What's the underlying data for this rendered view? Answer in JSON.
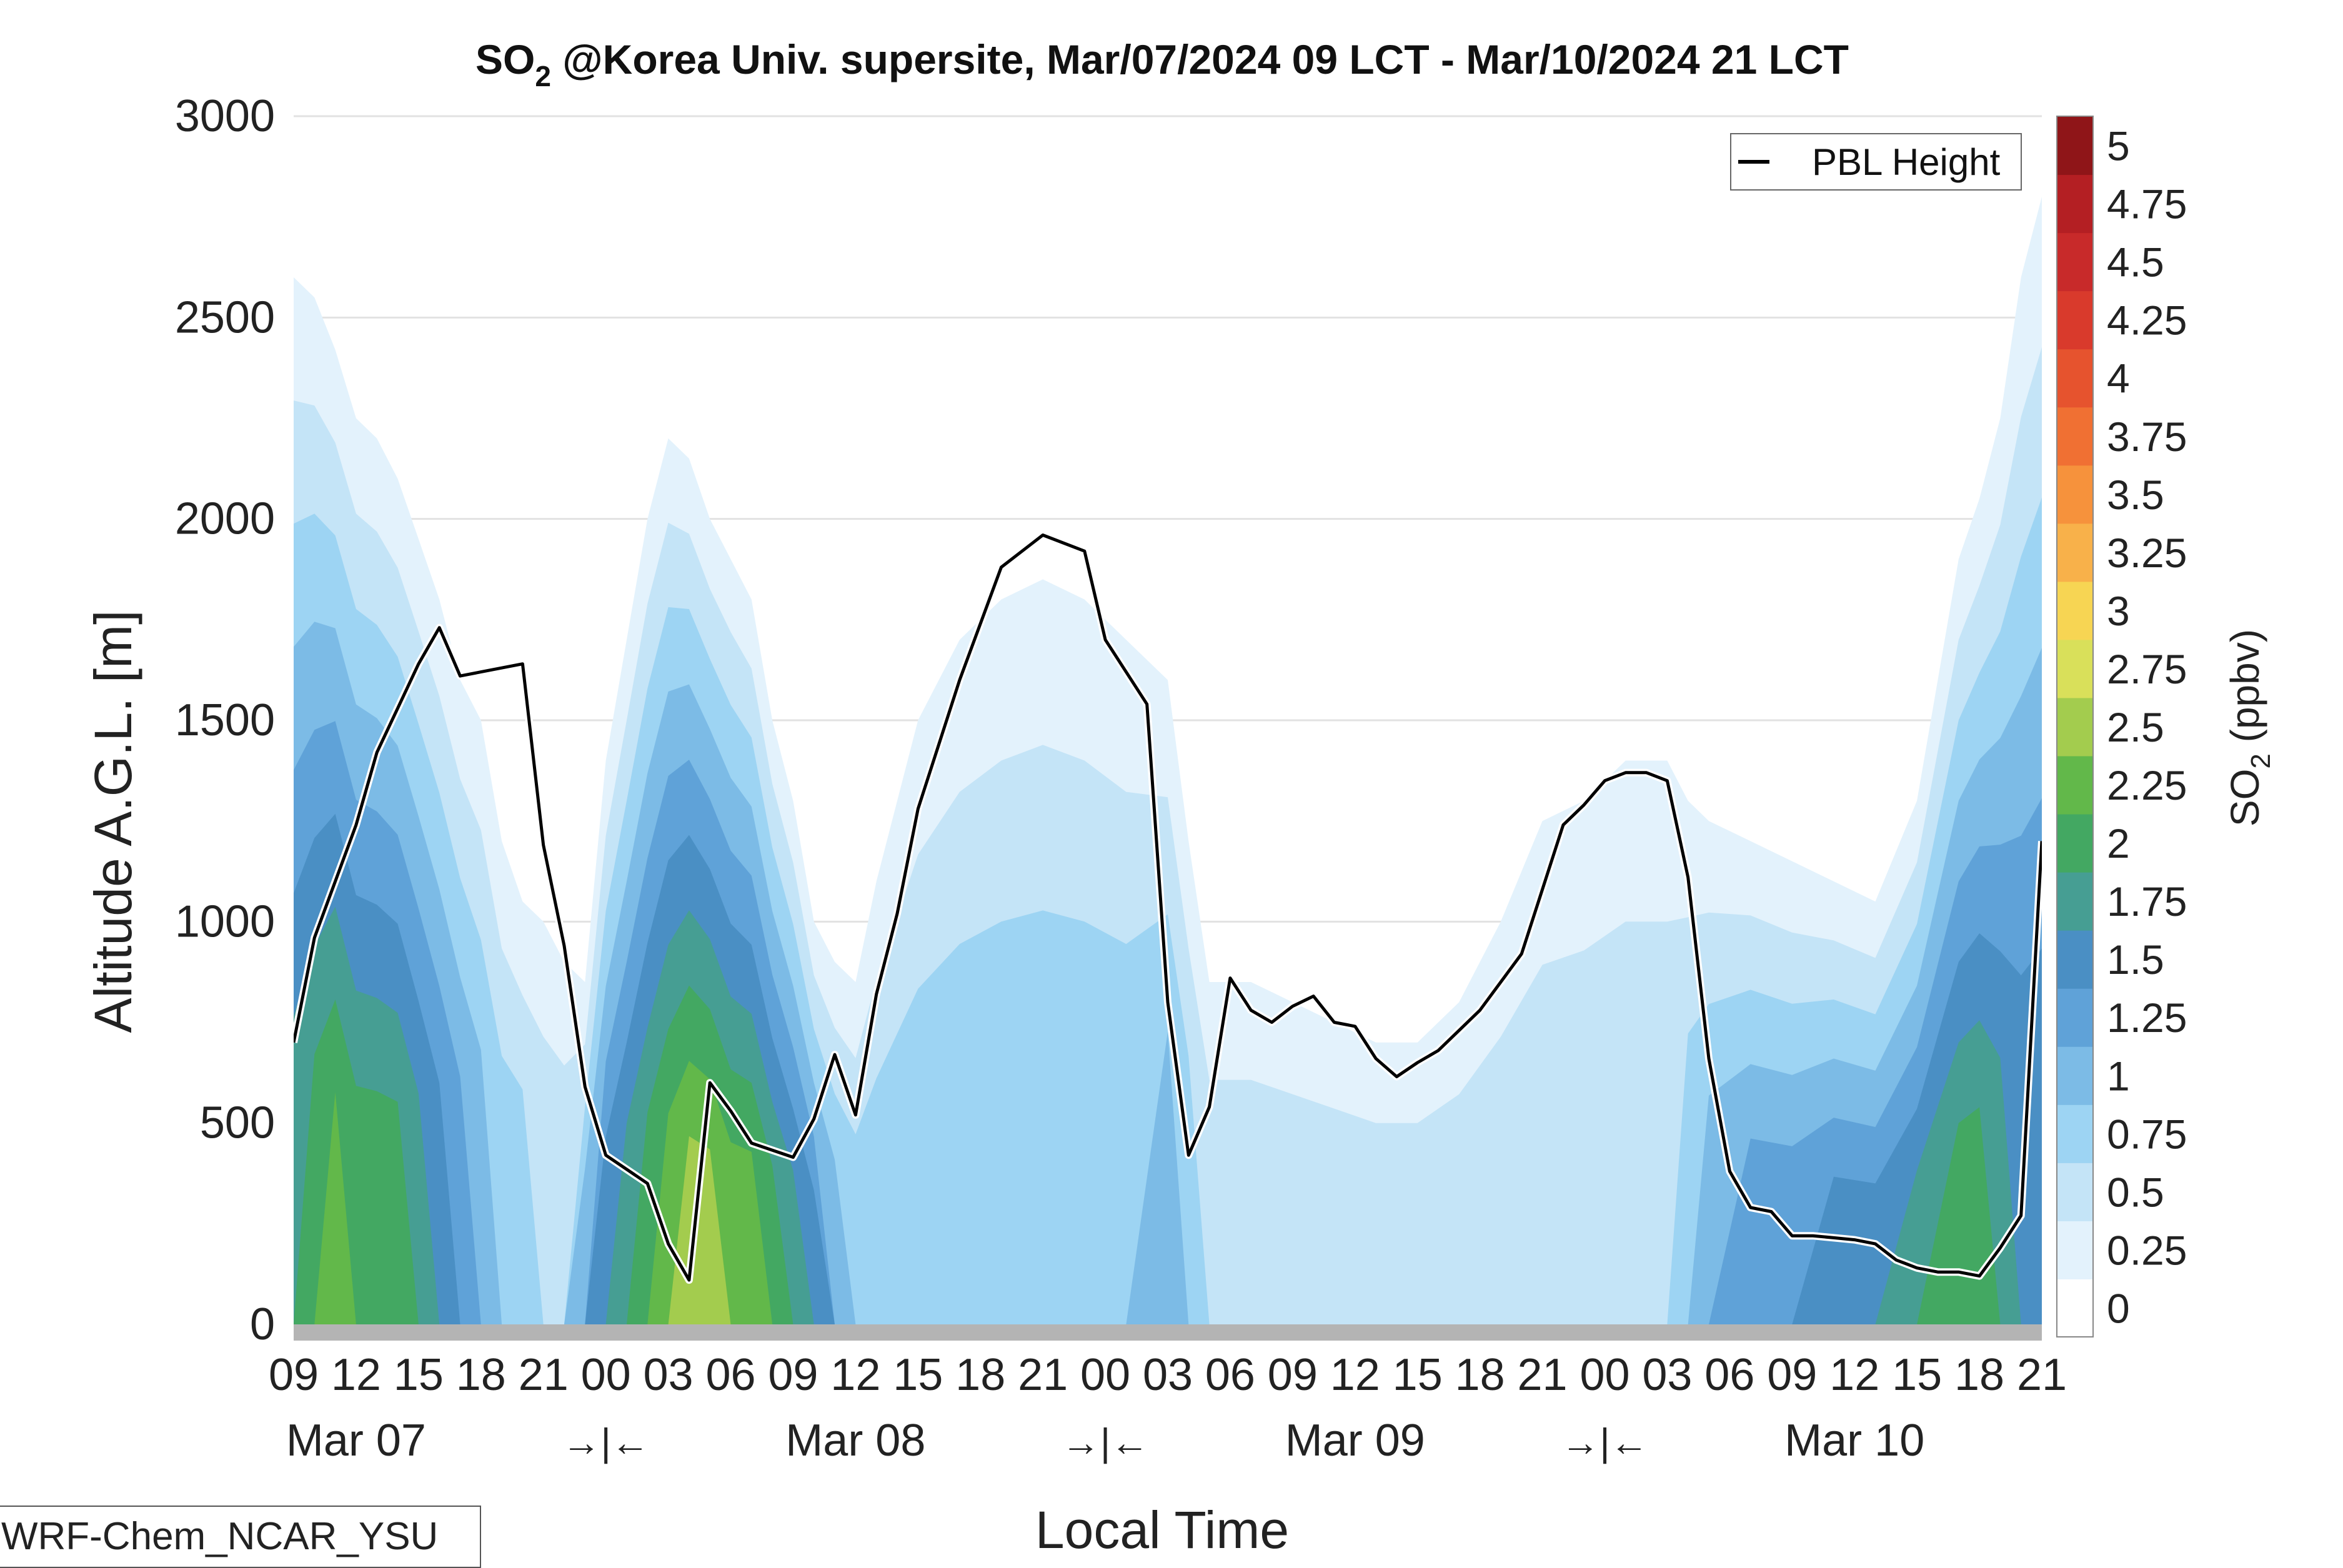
{
  "chart_data": {
    "type": "heatmap",
    "title_main": "SO",
    "title_sub": "2",
    "title_rest": " @Korea Univ. supersite, Mar/07/2024 09 LCT - Mar/10/2024 21 LCT",
    "xlabel": "Local Time",
    "ylabel": "Altitude A.G.L. [m]",
    "ylim": [
      0,
      3000
    ],
    "y_ticks": [
      "0",
      "500",
      "1000",
      "1500",
      "2000",
      "2500",
      "3000"
    ],
    "x_ticks": [
      "09",
      "12",
      "15",
      "18",
      "21",
      "00",
      "03",
      "06",
      "09",
      "12",
      "15",
      "18",
      "21",
      "00",
      "03",
      "06",
      "09",
      "12",
      "15",
      "18",
      "21",
      "00",
      "03",
      "06",
      "09",
      "12",
      "15",
      "18",
      "21"
    ],
    "day_labels": [
      "Mar 07",
      "Mar 08",
      "Mar 09",
      "Mar 10"
    ],
    "midnight_markers": [
      "→|←",
      "→|←",
      "→|←"
    ],
    "colorbar": {
      "label": "SO",
      "label_sub": "2",
      "label_rest": " (ppbv)",
      "levels": [
        "0",
        "0.25",
        "0.5",
        "0.75",
        "1",
        "1.25",
        "1.5",
        "1.75",
        "2",
        "2.25",
        "2.5",
        "2.75",
        "3",
        "3.25",
        "3.5",
        "3.75",
        "4",
        "4.25",
        "4.5",
        "4.75",
        "5"
      ],
      "colors": [
        "#ffffff",
        "#e3f2fc",
        "#c4e4f7",
        "#9dd4f3",
        "#7cbbe6",
        "#5fa2d8",
        "#4a8fc4",
        "#469e93",
        "#43a862",
        "#62b84a",
        "#a3cc4e",
        "#d9e05a",
        "#f7d553",
        "#f8b14a",
        "#f6923c",
        "#f07033",
        "#e6532e",
        "#d93a2c",
        "#c82a2a",
        "#b41f23",
        "#8f1518"
      ]
    },
    "legend": {
      "label": "PBL Height",
      "placement": "top-right"
    },
    "pbl_height": {
      "x_hours": [
        0,
        1,
        3,
        4,
        6,
        7,
        8,
        9,
        11,
        12,
        13,
        14,
        15,
        17,
        18,
        19,
        20,
        21,
        22,
        24,
        25,
        26,
        27,
        28,
        29,
        30,
        32,
        34,
        36,
        38,
        39,
        41,
        42,
        43,
        44,
        45,
        46,
        47,
        48,
        49,
        50,
        51,
        52,
        53,
        54,
        55,
        57,
        59,
        60,
        61,
        62,
        63,
        64,
        65,
        66,
        67,
        68,
        69,
        70,
        71,
        72,
        73,
        74,
        75,
        76,
        77,
        78,
        79,
        80,
        81,
        82,
        83,
        84
      ],
      "values": [
        700,
        960,
        1240,
        1420,
        1640,
        1730,
        1610,
        1620,
        1640,
        1190,
        940,
        590,
        420,
        350,
        200,
        110,
        600,
        530,
        450,
        415,
        510,
        670,
        520,
        820,
        1020,
        1280,
        1600,
        1880,
        1960,
        1920,
        1700,
        1540,
        800,
        420,
        540,
        860,
        780,
        750,
        790,
        815,
        750,
        740,
        660,
        615,
        650,
        680,
        780,
        920,
        1080,
        1240,
        1290,
        1350,
        1370,
        1370,
        1350,
        1110,
        660,
        380,
        290,
        280,
        220,
        220,
        215,
        210,
        200,
        160,
        140,
        130,
        130,
        120,
        190,
        270,
        1200
      ],
      "note": ""
    },
    "model": "WRF-Chem_NCAR_YSU"
  }
}
